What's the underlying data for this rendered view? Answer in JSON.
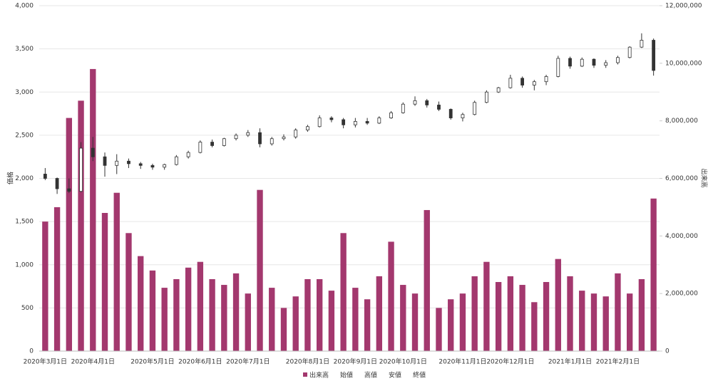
{
  "chart_data": {
    "type": "candlestick",
    "y_label": "価格",
    "y2_label": "出来高",
    "categories": [
      "2020年3月1日",
      null,
      null,
      null,
      "2020年4月1日",
      null,
      null,
      null,
      null,
      "2020年5月1日",
      null,
      null,
      null,
      "2020年6月1日",
      null,
      null,
      null,
      "2020年7月1日",
      null,
      null,
      null,
      null,
      "2020年8月1日",
      null,
      null,
      null,
      "2020年9月1日",
      null,
      null,
      null,
      "2020年10月1日",
      null,
      null,
      null,
      null,
      "2020年11月1日",
      null,
      null,
      null,
      "2020年12月1日",
      null,
      null,
      null,
      null,
      "2021年1月1日",
      null,
      null,
      null,
      "2021年2月1日",
      null,
      null,
      null
    ],
    "series": [
      {
        "name": "出来高",
        "type": "bar",
        "axis": "y2",
        "color": "#a3386e",
        "values": [
          4500000,
          5000000,
          8100000,
          8700000,
          9800000,
          4800000,
          5500000,
          4100000,
          3300000,
          2800000,
          2200000,
          2500000,
          2900000,
          3100000,
          2500000,
          2300000,
          2700000,
          2000000,
          5600000,
          2200000,
          1500000,
          1900000,
          2500000,
          2500000,
          2100000,
          4100000,
          2200000,
          1800000,
          2600000,
          3800000,
          2300000,
          2000000,
          4900000,
          1500000,
          1800000,
          2000000,
          2600000,
          3100000,
          2400000,
          2600000,
          2300000,
          1700000,
          2400000,
          3200000,
          2600000,
          2100000,
          2000000,
          1900000,
          2700000,
          2000000,
          2500000,
          5300000
        ]
      },
      {
        "name": "始値",
        "role": "open",
        "color": "#333333",
        "values": [
          2050,
          2000,
          1880,
          1850,
          2350,
          2250,
          2150,
          2200,
          2170,
          2150,
          2130,
          2160,
          2250,
          2300,
          2420,
          2380,
          2460,
          2500,
          2530,
          2400,
          2460,
          2480,
          2560,
          2600,
          2700,
          2680,
          2620,
          2660,
          2640,
          2700,
          2760,
          2860,
          2900,
          2850,
          2800,
          2700,
          2740,
          2880,
          3000,
          3050,
          3160,
          3080,
          3120,
          3180,
          3390,
          3300,
          3380,
          3310,
          3340,
          3400,
          3520,
          3600
        ]
      },
      {
        "name": "高値",
        "role": "high",
        "color": "#333333",
        "values": [
          2120,
          2010,
          2000,
          2420,
          2480,
          2300,
          2280,
          2230,
          2190,
          2170,
          2170,
          2270,
          2320,
          2440,
          2450,
          2470,
          2520,
          2560,
          2580,
          2480,
          2510,
          2580,
          2620,
          2730,
          2720,
          2700,
          2700,
          2700,
          2720,
          2780,
          2880,
          2950,
          2920,
          2890,
          2810,
          2760,
          2900,
          3020,
          3060,
          3200,
          3180,
          3140,
          3200,
          3420,
          3410,
          3400,
          3390,
          3370,
          3420,
          3530,
          3680,
          3620
        ]
      },
      {
        "name": "安値",
        "role": "low",
        "color": "#333333",
        "values": [
          1980,
          1820,
          1830,
          1840,
          2200,
          2020,
          2050,
          2120,
          2110,
          2100,
          2100,
          2150,
          2230,
          2290,
          2360,
          2370,
          2440,
          2480,
          2360,
          2380,
          2440,
          2460,
          2540,
          2590,
          2650,
          2580,
          2590,
          2620,
          2630,
          2690,
          2750,
          2840,
          2820,
          2780,
          2680,
          2660,
          2730,
          2870,
          2990,
          3040,
          3050,
          3020,
          3080,
          3170,
          3270,
          3290,
          3280,
          3280,
          3320,
          3390,
          3510,
          3190
        ]
      },
      {
        "name": "終値",
        "role": "close",
        "color": "#333333",
        "values": [
          2000,
          1880,
          1850,
          2350,
          2250,
          2150,
          2200,
          2170,
          2150,
          2130,
          2160,
          2250,
          2300,
          2420,
          2380,
          2460,
          2500,
          2530,
          2400,
          2460,
          2480,
          2560,
          2600,
          2700,
          2680,
          2620,
          2660,
          2640,
          2700,
          2760,
          2860,
          2900,
          2850,
          2800,
          2700,
          2740,
          2880,
          3000,
          3050,
          3160,
          3080,
          3120,
          3180,
          3390,
          3300,
          3380,
          3310,
          3340,
          3400,
          3520,
          3600,
          3250
        ]
      }
    ],
    "ylim": [
      0,
      4000
    ],
    "yticks": [
      0,
      500,
      {
        "value": 1000,
        "label": "1,000"
      },
      {
        "value": 1500,
        "label": "1,500"
      },
      {
        "value": 2000,
        "label": "2,000"
      },
      {
        "value": 2500,
        "label": "2,500"
      },
      {
        "value": 3000,
        "label": "3,000"
      },
      {
        "value": 3500,
        "label": "3,500"
      },
      {
        "value": 4000,
        "label": "4,000"
      }
    ],
    "y2lim": [
      0,
      12000000
    ],
    "y2ticks": [
      0,
      {
        "value": 2000000,
        "label": "2,000,000"
      },
      {
        "value": 4000000,
        "label": "4,000,000"
      },
      {
        "value": 6000000,
        "label": "6,000,000"
      },
      {
        "value": 8000000,
        "label": "8,000,000"
      },
      {
        "value": 10000000,
        "label": "10,000,000"
      },
      {
        "value": 12000000,
        "label": "12,000,000"
      }
    ],
    "grid": true,
    "legend": "bottom"
  }
}
